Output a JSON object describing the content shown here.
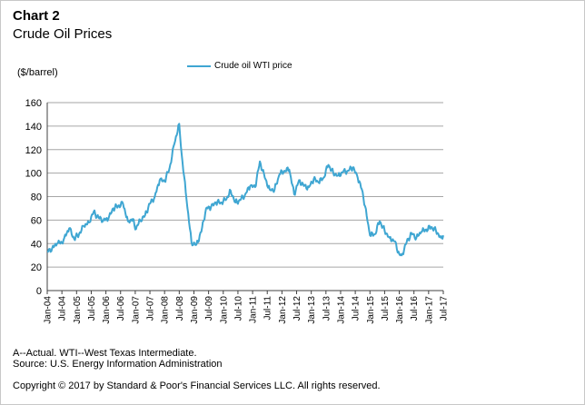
{
  "chart_number": "Chart 2",
  "title": "Crude Oil Prices",
  "notes": [
    "A--Actual. WTI--West Texas Intermediate.",
    "Source: U.S. Energy Information Administration"
  ],
  "copyright": "Copyright © 2017 by Standard & Poor's Financial Services LLC. All rights reserved.",
  "colors": {
    "series": "#3fa6d2",
    "grid": "#a6a6a6",
    "axis": "#404040"
  },
  "chart_data": {
    "type": "line",
    "ylabel": "($/barrel)",
    "ylim": [
      0,
      160
    ],
    "yticks": [
      0,
      20,
      40,
      60,
      80,
      100,
      120,
      140,
      160
    ],
    "xlim": [
      "2004-01",
      "2017-07"
    ],
    "xticks": [
      "Jan-04",
      "Jul-04",
      "Jan-05",
      "Jul-05",
      "Jan-06",
      "Jul-06",
      "Jan-07",
      "Jul-07",
      "Jan-08",
      "Jul-08",
      "Jan-09",
      "Jul-09",
      "Jan-10",
      "Jul-10",
      "Jan-11",
      "Jul-11",
      "Jan-12",
      "Jul-12",
      "Jan-13",
      "Jul-13",
      "Jan-14",
      "Jul-14",
      "Jan-15",
      "Jul-15",
      "Jan-16",
      "Jul-16",
      "Jan-17",
      "Jul-17"
    ],
    "grid": "horizontal",
    "legend_position": "top-center",
    "series": [
      {
        "name": "Crude oil WTI price",
        "points": [
          [
            "2004-01",
            33
          ],
          [
            "2004-03",
            36
          ],
          [
            "2004-05",
            40
          ],
          [
            "2004-07",
            41
          ],
          [
            "2004-08",
            45
          ],
          [
            "2004-10",
            53
          ],
          [
            "2004-12",
            44
          ],
          [
            "2005-02",
            48
          ],
          [
            "2005-04",
            55
          ],
          [
            "2005-06",
            58
          ],
          [
            "2005-08",
            67
          ],
          [
            "2005-10",
            62
          ],
          [
            "2005-12",
            60
          ],
          [
            "2006-02",
            61
          ],
          [
            "2006-04",
            70
          ],
          [
            "2006-06",
            72
          ],
          [
            "2006-08",
            74
          ],
          [
            "2006-10",
            59
          ],
          [
            "2006-12",
            61
          ],
          [
            "2007-01",
            52
          ],
          [
            "2007-03",
            60
          ],
          [
            "2007-05",
            64
          ],
          [
            "2007-07",
            74
          ],
          [
            "2007-09",
            80
          ],
          [
            "2007-11",
            94
          ],
          [
            "2008-01",
            93
          ],
          [
            "2008-03",
            104
          ],
          [
            "2008-05",
            125
          ],
          [
            "2008-07",
            142
          ],
          [
            "2008-08",
            116
          ],
          [
            "2008-10",
            77
          ],
          [
            "2008-12",
            41
          ],
          [
            "2009-02",
            39
          ],
          [
            "2009-04",
            50
          ],
          [
            "2009-06",
            70
          ],
          [
            "2009-08",
            71
          ],
          [
            "2009-10",
            75
          ],
          [
            "2009-12",
            75
          ],
          [
            "2010-02",
            77
          ],
          [
            "2010-04",
            85
          ],
          [
            "2010-06",
            75
          ],
          [
            "2010-08",
            77
          ],
          [
            "2010-10",
            82
          ],
          [
            "2010-12",
            89
          ],
          [
            "2011-02",
            88
          ],
          [
            "2011-04",
            110
          ],
          [
            "2011-06",
            96
          ],
          [
            "2011-08",
            86
          ],
          [
            "2011-10",
            86
          ],
          [
            "2011-12",
            99
          ],
          [
            "2012-02",
            102
          ],
          [
            "2012-04",
            103
          ],
          [
            "2012-06",
            82
          ],
          [
            "2012-08",
            94
          ],
          [
            "2012-10",
            89
          ],
          [
            "2012-12",
            88
          ],
          [
            "2013-02",
            95
          ],
          [
            "2013-04",
            92
          ],
          [
            "2013-06",
            96
          ],
          [
            "2013-08",
            107
          ],
          [
            "2013-10",
            100
          ],
          [
            "2013-12",
            98
          ],
          [
            "2014-02",
            101
          ],
          [
            "2014-04",
            102
          ],
          [
            "2014-06",
            105
          ],
          [
            "2014-08",
            96
          ],
          [
            "2014-10",
            84
          ],
          [
            "2014-12",
            59
          ],
          [
            "2015-01",
            47
          ],
          [
            "2015-03",
            48
          ],
          [
            "2015-05",
            59
          ],
          [
            "2015-07",
            51
          ],
          [
            "2015-09",
            45
          ],
          [
            "2015-11",
            42
          ],
          [
            "2016-01",
            31
          ],
          [
            "2016-02",
            30
          ],
          [
            "2016-04",
            41
          ],
          [
            "2016-06",
            49
          ],
          [
            "2016-08",
            45
          ],
          [
            "2016-10",
            50
          ],
          [
            "2016-12",
            52
          ],
          [
            "2017-02",
            54
          ],
          [
            "2017-04",
            51
          ],
          [
            "2017-06",
            45
          ],
          [
            "2017-07",
            47
          ]
        ]
      }
    ]
  }
}
